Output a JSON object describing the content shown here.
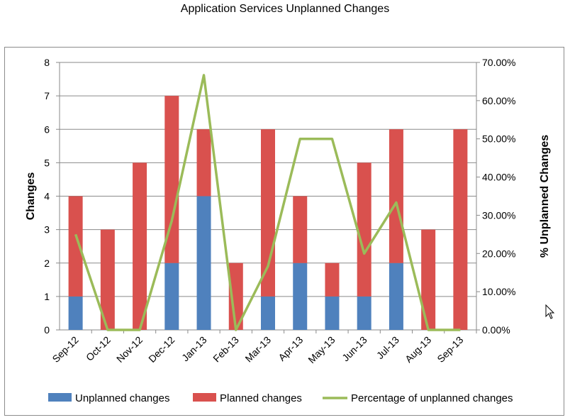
{
  "chart_data": {
    "type": "bar",
    "stacked": true,
    "title": "Application Services Unplanned Changes",
    "categories": [
      "Sep-12",
      "Oct-12",
      "Nov-12",
      "Dec-12",
      "Jan-13",
      "Feb-13",
      "Mar-13",
      "Apr-13",
      "May-13",
      "Jun-13",
      "Jul-13",
      "Aug-13",
      "Sep-13"
    ],
    "series": [
      {
        "name": "Unplanned changes",
        "type": "bar",
        "axis": "left",
        "color": "#4f81bd",
        "values": [
          1,
          0,
          0,
          2,
          4,
          0,
          1,
          2,
          1,
          1,
          2,
          0,
          0
        ]
      },
      {
        "name": "Planned changes",
        "type": "bar",
        "axis": "left",
        "color": "#d9514e",
        "values": [
          3,
          3,
          5,
          5,
          2,
          2,
          5,
          2,
          1,
          4,
          4,
          3,
          6
        ]
      },
      {
        "name": "Percentage of unplanned changes",
        "type": "line",
        "axis": "right",
        "color": "#9bbb59",
        "values": [
          25,
          0,
          0,
          28.57,
          66.67,
          0,
          16.67,
          50,
          50,
          20,
          33.33,
          0,
          0
        ]
      }
    ],
    "ylabel": "Changes",
    "y2label": "% Unplanned Changes",
    "ylim": [
      0,
      8
    ],
    "y2lim": [
      0,
      70
    ],
    "yticks": [
      "0",
      "1",
      "2",
      "3",
      "4",
      "5",
      "6",
      "7",
      "8"
    ],
    "y2ticks": [
      "0.00%",
      "10.00%",
      "20.00%",
      "30.00%",
      "40.00%",
      "50.00%",
      "60.00%",
      "70.00%"
    ],
    "grid": true,
    "legend_position": "bottom"
  }
}
